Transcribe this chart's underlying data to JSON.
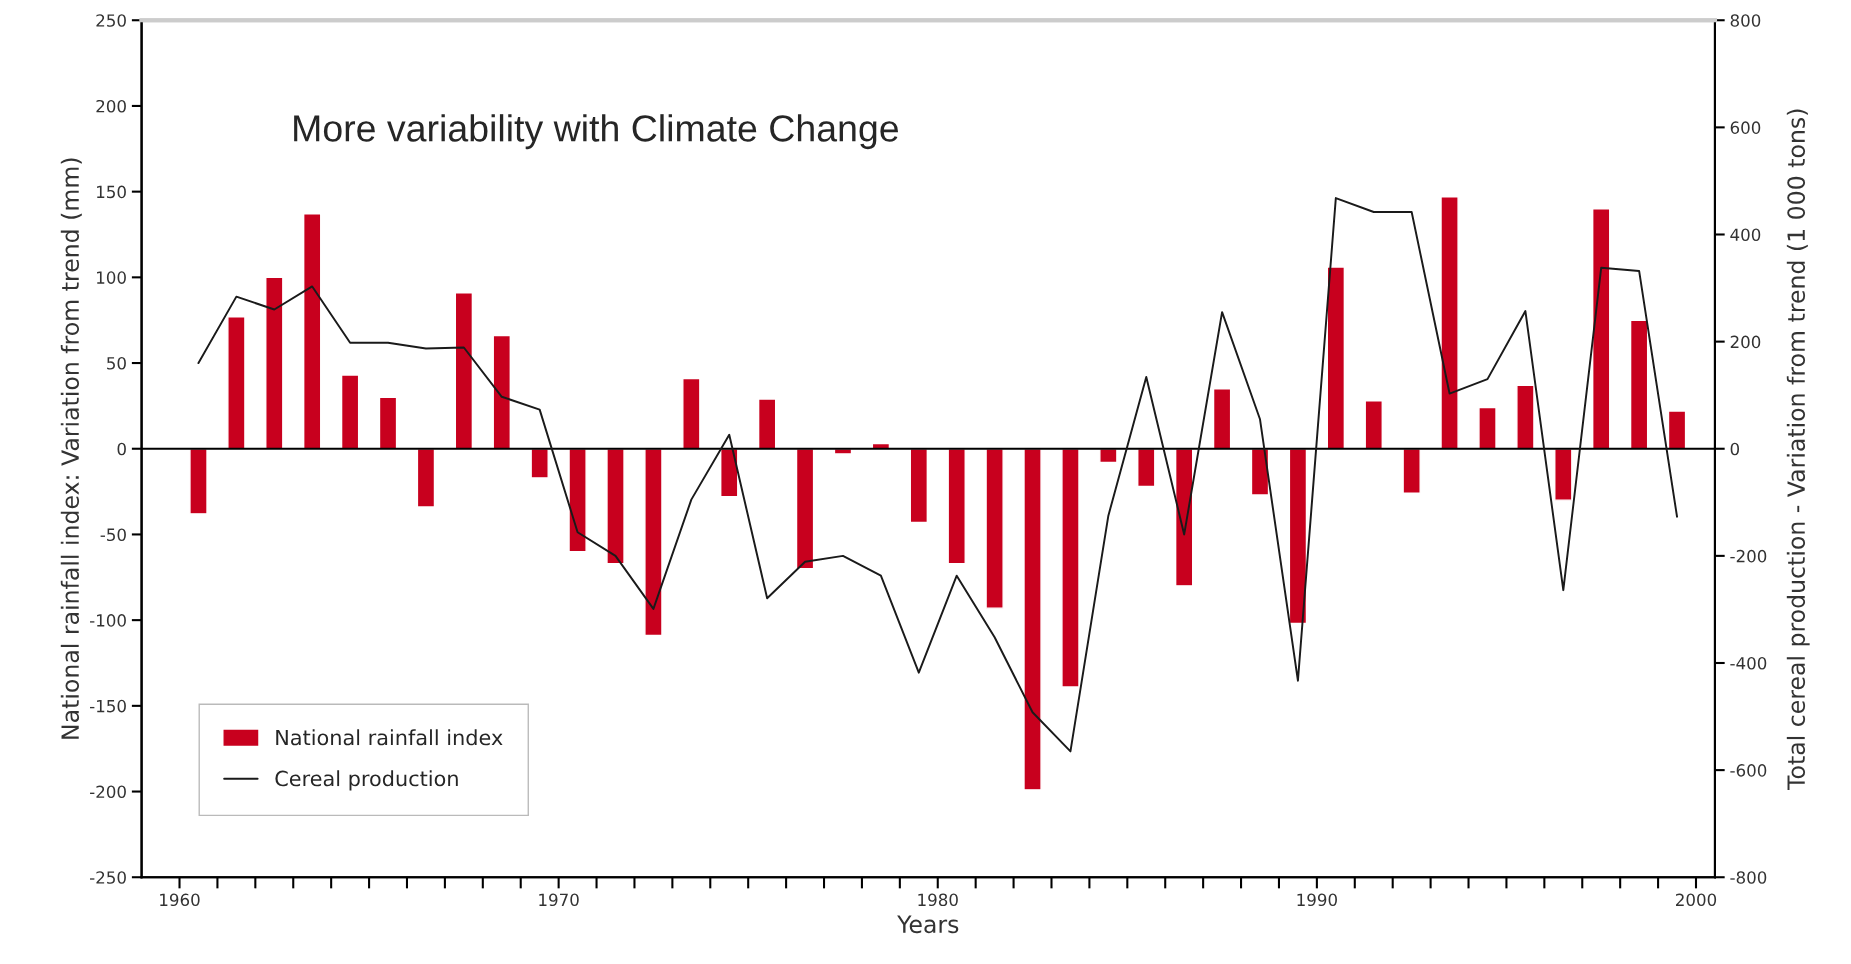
{
  "chart_data": {
    "type": "bar",
    "title": "More variability with Climate Change",
    "xlabel": "Years",
    "ylabel": "National rainfall index: Variation from trend (mm)",
    "y2label": "Total cereal production - Variation from trend (1 000 tons)",
    "x": [
      1960.5,
      1961.5,
      1962.5,
      1963.5,
      1964.5,
      1965.5,
      1966.5,
      1967.5,
      1968.5,
      1969.5,
      1970.5,
      1971.5,
      1972.5,
      1973.5,
      1974.5,
      1975.5,
      1976.5,
      1977.5,
      1978.5,
      1979.5,
      1980.5,
      1981.5,
      1982.5,
      1983.5,
      1984.5,
      1985.5,
      1986.5,
      1987.5,
      1988.5,
      1989.5,
      1990.5,
      1991.5,
      1992.5,
      1993.5,
      1994.5,
      1995.5,
      1996.5,
      1997.5,
      1998.5,
      1999.5
    ],
    "series": [
      {
        "name": "National rainfall index",
        "type": "bar",
        "color": "#c8001e",
        "values": [
          -38,
          77,
          100,
          137,
          43,
          30,
          -34,
          91,
          66,
          -17,
          -60,
          -67,
          -109,
          41,
          -28,
          29,
          -70,
          -3,
          3,
          -43,
          -67,
          -93,
          -199,
          -139,
          -8,
          -22,
          -80,
          35,
          -27,
          -102,
          106,
          28,
          -26,
          147,
          24,
          37,
          -30,
          140,
          75,
          22
        ]
      },
      {
        "name": "Cereal production",
        "type": "line",
        "axis": "y2",
        "color": "#1a1a1a",
        "values": [
          160,
          284,
          260,
          303,
          198,
          198,
          187,
          189,
          97,
          73,
          -156,
          -200,
          -299,
          -95,
          26,
          -279,
          -211,
          -200,
          -237,
          -418,
          -237,
          -352,
          -492,
          -565,
          -125,
          134,
          -160,
          255,
          55,
          -433,
          468,
          442,
          442,
          103,
          130,
          257,
          -264,
          338,
          332,
          -127
        ]
      }
    ],
    "xlim": [
      1959,
      2000.5
    ],
    "xticks": [
      1960,
      {
        "value": 1961,
        "label": null
      },
      {
        "value": 1962,
        "label": null
      },
      {
        "value": 1963,
        "label": null
      },
      {
        "value": 1964,
        "label": null
      },
      {
        "value": 1965,
        "label": null
      },
      {
        "value": 1966,
        "label": null
      },
      {
        "value": 1967,
        "label": null
      },
      {
        "value": 1968,
        "label": null
      },
      {
        "value": 1969,
        "label": null
      },
      1970,
      {
        "value": 1971,
        "label": null
      },
      {
        "value": 1972,
        "label": null
      },
      {
        "value": 1973,
        "label": null
      },
      {
        "value": 1974,
        "label": null
      },
      {
        "value": 1975,
        "label": null
      },
      {
        "value": 1976,
        "label": null
      },
      {
        "value": 1977,
        "label": null
      },
      {
        "value": 1978,
        "label": null
      },
      {
        "value": 1979,
        "label": null
      },
      1980,
      {
        "value": 1981,
        "label": null
      },
      {
        "value": 1982,
        "label": null
      },
      {
        "value": 1983,
        "label": null
      },
      {
        "value": 1984,
        "label": null
      },
      {
        "value": 1985,
        "label": null
      },
      {
        "value": 1986,
        "label": null
      },
      {
        "value": 1987,
        "label": null
      },
      {
        "value": 1988,
        "label": null
      },
      {
        "value": 1989,
        "label": null
      },
      1990,
      {
        "value": 1991,
        "label": null
      },
      {
        "value": 1992,
        "label": null
      },
      {
        "value": 1993,
        "label": null
      },
      {
        "value": 1994,
        "label": null
      },
      {
        "value": 1995,
        "label": null
      },
      {
        "value": 1996,
        "label": null
      },
      {
        "value": 1997,
        "label": null
      },
      {
        "value": 1998,
        "label": null
      },
      {
        "value": 1999,
        "label": null
      },
      2000
    ],
    "ylim": [
      -250,
      250
    ],
    "yticks": [
      -250,
      -200,
      -150,
      -100,
      -50,
      0,
      50,
      100,
      150,
      200,
      250
    ],
    "y2lim": [
      -800,
      800
    ],
    "y2ticks": [
      -800,
      -600,
      -400,
      -200,
      0,
      200,
      400,
      600,
      800
    ],
    "ref_lines": [
      {
        "axis": "y",
        "value": 0,
        "color": "#000000"
      }
    ],
    "grid": false,
    "legend": "bottom left",
    "marker": "none",
    "line_style": "solid"
  }
}
